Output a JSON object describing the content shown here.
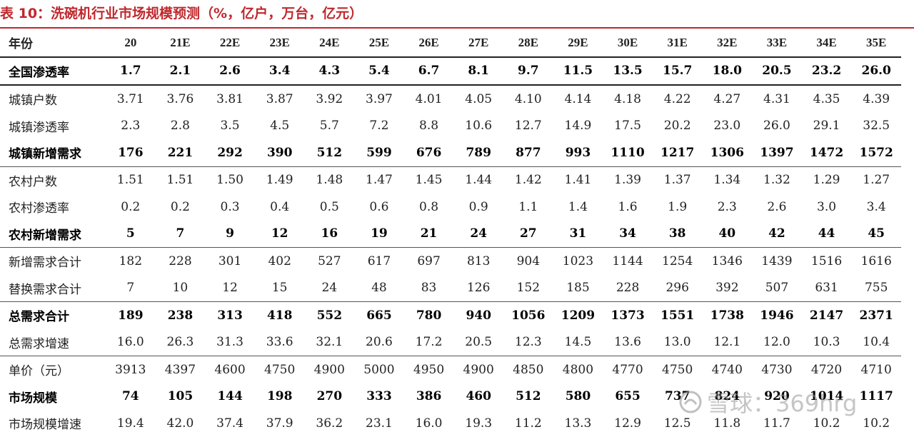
{
  "title": "表 10：洗碗机行业市场规模预测（%，亿户，万台，亿元）",
  "header": {
    "label": "年份",
    "years": [
      "20",
      "21E",
      "22E",
      "23E",
      "24E",
      "25E",
      "26E",
      "27E",
      "28E",
      "29E",
      "30E",
      "31E",
      "32E",
      "33E",
      "34E",
      "35E"
    ]
  },
  "rows": [
    {
      "label": "全国渗透率",
      "values": [
        "1.7",
        "2.1",
        "2.6",
        "3.4",
        "4.3",
        "5.4",
        "6.7",
        "8.1",
        "9.7",
        "11.5",
        "13.5",
        "15.7",
        "18.0",
        "20.5",
        "23.2",
        "26.0"
      ]
    },
    {
      "label": "城镇户数",
      "values": [
        "3.71",
        "3.76",
        "3.81",
        "3.87",
        "3.92",
        "3.97",
        "4.01",
        "4.05",
        "4.10",
        "4.14",
        "4.18",
        "4.22",
        "4.27",
        "4.31",
        "4.35",
        "4.39"
      ]
    },
    {
      "label": "城镇渗透率",
      "values": [
        "2.3",
        "2.8",
        "3.5",
        "4.5",
        "5.7",
        "7.2",
        "8.8",
        "10.6",
        "12.7",
        "14.9",
        "17.5",
        "20.2",
        "23.0",
        "26.0",
        "29.1",
        "32.5"
      ]
    },
    {
      "label": "城镇新增需求",
      "values": [
        "176",
        "221",
        "292",
        "390",
        "512",
        "599",
        "676",
        "789",
        "877",
        "993",
        "1110",
        "1217",
        "1306",
        "1397",
        "1472",
        "1572"
      ]
    },
    {
      "label": "农村户数",
      "values": [
        "1.51",
        "1.51",
        "1.50",
        "1.49",
        "1.48",
        "1.47",
        "1.45",
        "1.44",
        "1.42",
        "1.41",
        "1.39",
        "1.37",
        "1.34",
        "1.32",
        "1.29",
        "1.27"
      ]
    },
    {
      "label": "农村渗透率",
      "values": [
        "0.2",
        "0.2",
        "0.3",
        "0.4",
        "0.5",
        "0.6",
        "0.8",
        "0.9",
        "1.1",
        "1.4",
        "1.6",
        "1.9",
        "2.3",
        "2.6",
        "3.0",
        "3.4"
      ]
    },
    {
      "label": "农村新增需求",
      "values": [
        "5",
        "7",
        "9",
        "12",
        "16",
        "19",
        "21",
        "24",
        "27",
        "31",
        "34",
        "38",
        "40",
        "42",
        "44",
        "45"
      ]
    },
    {
      "label": "新增需求合计",
      "values": [
        "182",
        "228",
        "301",
        "402",
        "527",
        "617",
        "697",
        "813",
        "904",
        "1023",
        "1144",
        "1254",
        "1346",
        "1439",
        "1516",
        "1616"
      ]
    },
    {
      "label": "替换需求合计",
      "values": [
        "7",
        "10",
        "12",
        "15",
        "24",
        "48",
        "83",
        "126",
        "152",
        "185",
        "228",
        "296",
        "392",
        "507",
        "631",
        "755"
      ]
    },
    {
      "label": "总需求合计",
      "values": [
        "189",
        "238",
        "313",
        "418",
        "552",
        "665",
        "780",
        "940",
        "1056",
        "1209",
        "1373",
        "1551",
        "1738",
        "1946",
        "2147",
        "2371"
      ]
    },
    {
      "label": "总需求增速",
      "values": [
        "16.0",
        "26.3",
        "31.3",
        "33.6",
        "32.1",
        "20.6",
        "17.2",
        "20.5",
        "12.3",
        "14.5",
        "13.6",
        "13.0",
        "12.1",
        "12.0",
        "10.3",
        "10.4"
      ]
    },
    {
      "label": "单价（元）",
      "values": [
        "3913",
        "4397",
        "4600",
        "4750",
        "4900",
        "5000",
        "4950",
        "4900",
        "4850",
        "4800",
        "4770",
        "4750",
        "4740",
        "4730",
        "4720",
        "4710"
      ]
    },
    {
      "label": "市场规模",
      "values": [
        "74",
        "105",
        "144",
        "198",
        "270",
        "333",
        "386",
        "460",
        "512",
        "580",
        "655",
        "737",
        "824",
        "920",
        "1014",
        "1117"
      ]
    },
    {
      "label": "市场规模增速",
      "values": [
        "19.4",
        "42.0",
        "37.4",
        "37.9",
        "36.2",
        "23.1",
        "16.0",
        "19.3",
        "11.2",
        "13.3",
        "12.9",
        "12.5",
        "11.8",
        "11.7",
        "10.2",
        "10.2"
      ]
    }
  ],
  "watermark": "雪球：369hrg"
}
